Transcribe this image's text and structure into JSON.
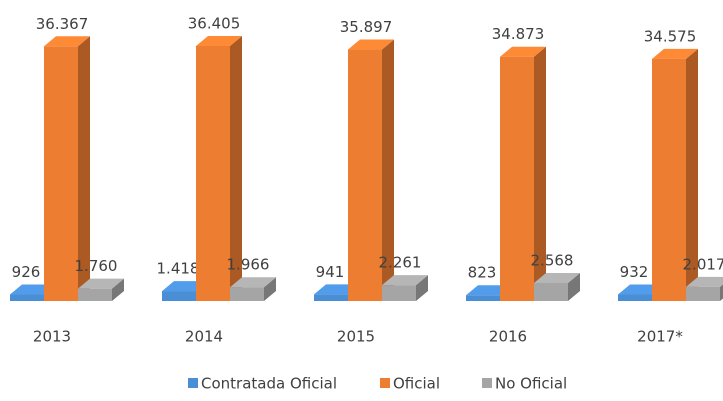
{
  "chart_data": {
    "type": "bar",
    "categories": [
      "2013",
      "2014",
      "2015",
      "2016",
      "2017*"
    ],
    "series": [
      {
        "name": "Contratada Oficial",
        "color": "#4a8fd6",
        "values": [
          926,
          1418,
          941,
          823,
          932
        ],
        "value_labels": [
          "926",
          "1.418",
          "941",
          "823",
          "932"
        ]
      },
      {
        "name": "Oficial",
        "color": "#ed7d31",
        "values": [
          36367,
          36405,
          35897,
          34873,
          34575
        ],
        "value_labels": [
          "36.367",
          "36.405",
          "35.897",
          "34.873",
          "34.575"
        ]
      },
      {
        "name": "No Oficial",
        "color": "#a5a5a5",
        "values": [
          1760,
          1966,
          2261,
          2568,
          2017
        ],
        "value_labels": [
          "1.760",
          "1.966",
          "2.261",
          "2.568",
          "2.017"
        ]
      }
    ],
    "legend": "bottom"
  }
}
